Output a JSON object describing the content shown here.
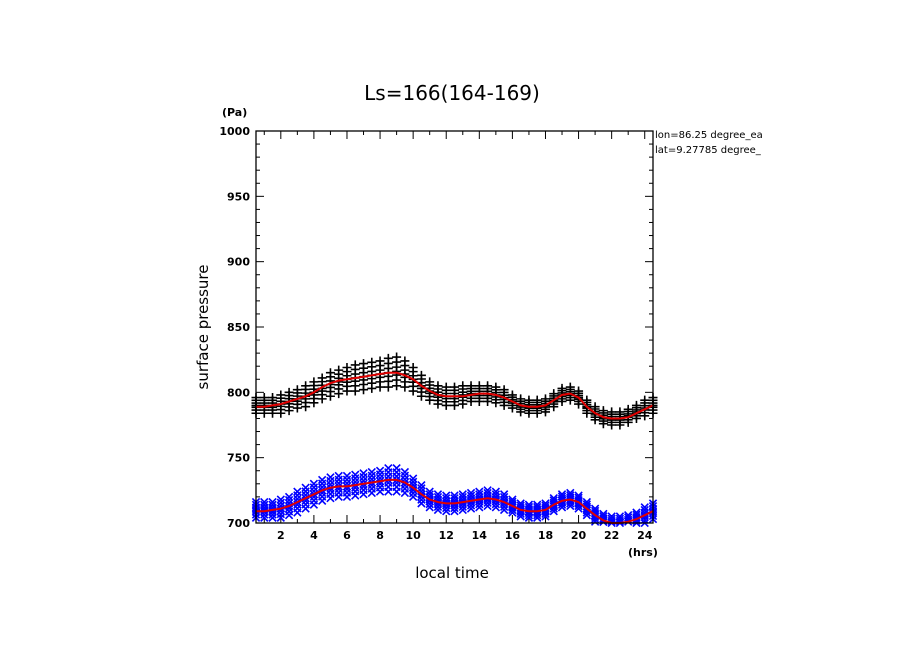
{
  "colors": {
    "background": "#ffffff",
    "axis": "#000000",
    "sample_black": "#000000",
    "sample_blue": "#0000ff",
    "mean_line": "#e00000"
  },
  "chart_data": {
    "type": "scatter",
    "title": "Ls=166(164-169)",
    "xlabel": "local time",
    "ylabel": "surface pressure",
    "x_unit": "(hrs)",
    "y_unit": "(Pa)",
    "annotations": [
      "lon=86.25 degree_ea",
      "lat=9.27785 degree_"
    ],
    "xlim": [
      0.5,
      24.5
    ],
    "ylim": [
      700,
      1000
    ],
    "x_ticks": [
      2,
      4,
      6,
      8,
      10,
      12,
      14,
      16,
      18,
      20,
      22,
      24
    ],
    "y_ticks": [
      700,
      750,
      800,
      850,
      900,
      950,
      1000
    ],
    "grid": false,
    "series": [
      {
        "marker": "plus",
        "color": "#000000",
        "x": [
          0.5,
          1,
          1.5,
          2,
          2.5,
          3,
          3.5,
          4,
          4.5,
          5,
          5.5,
          6,
          6.5,
          7,
          7.5,
          8,
          8.5,
          9,
          9.5,
          10,
          10.5,
          11,
          11.5,
          12,
          12.5,
          13,
          13.5,
          14,
          14.5,
          15,
          15.5,
          16,
          16.5,
          17,
          17.5,
          18,
          18.5,
          19,
          19.5,
          20,
          20.5,
          21,
          21.5,
          22,
          22.5,
          23,
          23.5,
          24,
          24.5
        ],
        "center": [
          790,
          790,
          790,
          791,
          793,
          795,
          797,
          800,
          803,
          806,
          808,
          810,
          811,
          812,
          813,
          814,
          815,
          816,
          814,
          810,
          805,
          801,
          798,
          797,
          797,
          798,
          799,
          799,
          799,
          798,
          796,
          793,
          790,
          789,
          789,
          790,
          794,
          798,
          799,
          796,
          789,
          784,
          781,
          780,
          780,
          782,
          785,
          788,
          790
        ],
        "spread": [
          6,
          6,
          6,
          7,
          7,
          7,
          8,
          8,
          8,
          9,
          9,
          9,
          10,
          10,
          10,
          10,
          11,
          11,
          10,
          9,
          8,
          7,
          7,
          7,
          7,
          7,
          6,
          6,
          6,
          6,
          6,
          5,
          5,
          5,
          5,
          5,
          5,
          5,
          5,
          5,
          5,
          5,
          5,
          5,
          5,
          5,
          5,
          6,
          6
        ],
        "mean": [
          789,
          789,
          790,
          791,
          793,
          795,
          797,
          800,
          804,
          807,
          809,
          810,
          811,
          812,
          813,
          814,
          815,
          815,
          813,
          810,
          805,
          801,
          798,
          797,
          797,
          797,
          798,
          799,
          799,
          798,
          796,
          793,
          790,
          789,
          789,
          790,
          794,
          798,
          799,
          796,
          789,
          784,
          781,
          780,
          780,
          781,
          784,
          787,
          790
        ]
      },
      {
        "marker": "x",
        "color": "#0000ff",
        "x": [
          0.5,
          1,
          1.5,
          2,
          2.5,
          3,
          3.5,
          4,
          4.5,
          5,
          5.5,
          6,
          6.5,
          7,
          7.5,
          8,
          8.5,
          9,
          9.5,
          10,
          10.5,
          11,
          11.5,
          12,
          12.5,
          13,
          13.5,
          14,
          14.5,
          15,
          15.5,
          16,
          16.5,
          17,
          17.5,
          18,
          18.5,
          19,
          19.5,
          20,
          20.5,
          21,
          21.5,
          22,
          22.5,
          23,
          23.5,
          24,
          24.5
        ],
        "center": [
          710,
          710,
          710,
          711,
          713,
          716,
          719,
          722,
          725,
          727,
          728,
          728,
          729,
          730,
          731,
          732,
          733,
          733,
          731,
          727,
          722,
          718,
          716,
          715,
          715,
          716,
          717,
          718,
          719,
          718,
          716,
          713,
          710,
          709,
          709,
          710,
          714,
          717,
          718,
          716,
          711,
          706,
          702,
          700,
          700,
          701,
          703,
          706,
          709
        ],
        "spread": [
          6,
          6,
          6,
          7,
          7,
          8,
          8,
          8,
          8,
          8,
          8,
          8,
          8,
          8,
          8,
          8,
          9,
          9,
          8,
          7,
          7,
          6,
          6,
          6,
          6,
          6,
          6,
          6,
          6,
          6,
          6,
          5,
          5,
          5,
          5,
          5,
          5,
          5,
          5,
          5,
          5,
          5,
          5,
          5,
          5,
          5,
          5,
          6,
          6
        ],
        "mean": [
          709,
          709,
          710,
          711,
          713,
          716,
          719,
          722,
          725,
          727,
          728,
          728,
          729,
          730,
          731,
          732,
          733,
          733,
          731,
          727,
          722,
          718,
          716,
          715,
          715,
          716,
          717,
          718,
          719,
          718,
          716,
          713,
          710,
          709,
          709,
          710,
          714,
          717,
          718,
          716,
          711,
          706,
          702,
          700,
          700,
          701,
          703,
          706,
          709
        ]
      }
    ]
  }
}
